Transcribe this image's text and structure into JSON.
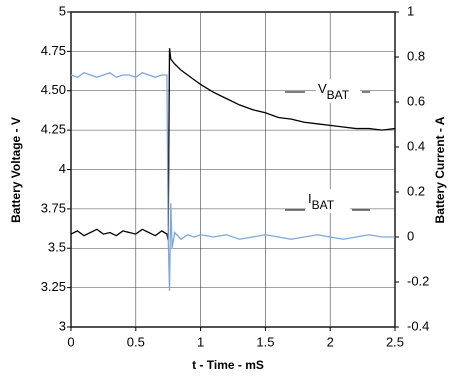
{
  "chart_data": {
    "type": "line",
    "xlabel": "t - Time - mS",
    "ylabel": "Battery Voltage - V",
    "y2label": "Battery Current - A",
    "x": [
      0,
      0.05,
      0.1,
      0.15,
      0.2,
      0.25,
      0.3,
      0.35,
      0.4,
      0.45,
      0.5,
      0.55,
      0.6,
      0.65,
      0.7,
      0.74,
      0.75,
      0.76,
      0.77,
      0.78,
      0.8,
      0.85,
      0.9,
      0.95,
      1.0,
      1.1,
      1.2,
      1.3,
      1.4,
      1.5,
      1.6,
      1.7,
      1.8,
      1.9,
      2.0,
      2.1,
      2.2,
      2.3,
      2.4,
      2.5
    ],
    "series": [
      {
        "name": "V",
        "subscript": "BAT",
        "color": "#000000",
        "values": [
          3.59,
          3.61,
          3.58,
          3.6,
          3.62,
          3.59,
          3.6,
          3.58,
          3.61,
          3.6,
          3.59,
          3.62,
          3.6,
          3.58,
          3.61,
          3.59,
          3.55,
          4.77,
          4.7,
          4.69,
          4.67,
          4.63,
          4.6,
          4.57,
          4.54,
          4.49,
          4.45,
          4.41,
          4.38,
          4.36,
          4.33,
          4.32,
          4.3,
          4.29,
          4.28,
          4.27,
          4.26,
          4.26,
          4.25,
          4.26
        ]
      },
      {
        "name": "I",
        "subscript": "BAT",
        "color": "#7fa8d8",
        "axis": "y2",
        "values": [
          0.72,
          0.71,
          0.73,
          0.72,
          0.71,
          0.72,
          0.73,
          0.71,
          0.72,
          0.72,
          0.71,
          0.73,
          0.72,
          0.71,
          0.72,
          0.72,
          0.0,
          -0.24,
          0.15,
          -0.05,
          0.02,
          -0.01,
          0.01,
          0.0,
          0.01,
          0.0,
          0.01,
          -0.01,
          0.0,
          0.01,
          0.0,
          -0.01,
          0.0,
          0.01,
          0.0,
          -0.01,
          0.0,
          0.01,
          0.0,
          0.0
        ]
      }
    ],
    "xlim": [
      0,
      2.5
    ],
    "xticks": [
      0,
      0.5,
      1,
      1.5,
      2,
      2.5
    ],
    "ylim": [
      3,
      5
    ],
    "yticks": [
      3,
      3.25,
      3.5,
      3.75,
      4,
      4.25,
      {
        "value": 4.5,
        "label": "4.50"
      },
      4.75,
      5
    ],
    "y2lim": [
      -0.4,
      1
    ],
    "y2ticks": [
      -0.4,
      -0.2,
      0,
      0.2,
      0.4,
      0.6,
      0.8,
      1
    ],
    "grid": true
  }
}
